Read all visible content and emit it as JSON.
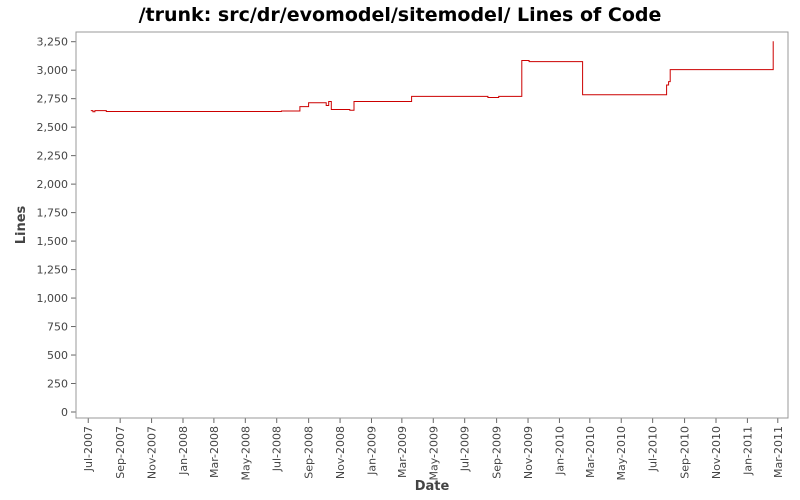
{
  "chart_data": {
    "type": "line",
    "title": "/trunk: src/dr/evomodel/sitemodel/ Lines of Code",
    "xlabel": "Date",
    "ylabel": "Lines",
    "ylim": [
      0,
      3300
    ],
    "xlim": [
      "2007-06-15",
      "2011-03-15"
    ],
    "grid": false,
    "legend": "none",
    "line_color": "#cc0000",
    "y_ticks": [
      0,
      250,
      500,
      750,
      1000,
      1250,
      1500,
      1750,
      2000,
      2250,
      2500,
      2750,
      3000,
      3250
    ],
    "y_tick_labels": [
      "0",
      "250",
      "500",
      "750",
      "1,000",
      "1,250",
      "1,500",
      "1,750",
      "2,000",
      "2,250",
      "2,500",
      "2,750",
      "3,000",
      "3,250"
    ],
    "x_ticks": [
      "2007-07-01",
      "2007-09-01",
      "2007-11-01",
      "2008-01-01",
      "2008-03-01",
      "2008-05-01",
      "2008-07-01",
      "2008-09-01",
      "2008-11-01",
      "2009-01-01",
      "2009-03-01",
      "2009-05-01",
      "2009-07-01",
      "2009-09-01",
      "2009-11-01",
      "2010-01-01",
      "2010-03-01",
      "2010-05-01",
      "2010-07-01",
      "2010-09-01",
      "2010-11-01",
      "2011-01-01",
      "2011-03-01"
    ],
    "x_tick_labels": [
      "Jul-2007",
      "Sep-2007",
      "Nov-2007",
      "Jan-2008",
      "Mar-2008",
      "May-2008",
      "Jul-2008",
      "Sep-2008",
      "Nov-2008",
      "Jan-2009",
      "Mar-2009",
      "May-2009",
      "Jul-2009",
      "Sep-2009",
      "Nov-2009",
      "Jan-2010",
      "Mar-2010",
      "May-2010",
      "Jul-2010",
      "Sep-2010",
      "Nov-2010",
      "Jan-2011",
      "Mar-2011"
    ],
    "series": [
      {
        "style": "step",
        "points": [
          [
            "2007-07-06",
            2645
          ],
          [
            "2007-07-10",
            2635
          ],
          [
            "2007-07-14",
            2645
          ],
          [
            "2007-08-05",
            2637
          ],
          [
            "2008-07-10",
            2642
          ],
          [
            "2008-08-15",
            2680
          ],
          [
            "2008-09-01",
            2715
          ],
          [
            "2008-10-05",
            2690
          ],
          [
            "2008-10-10",
            2725
          ],
          [
            "2008-10-15",
            2655
          ],
          [
            "2008-11-20",
            2648
          ],
          [
            "2008-11-28",
            2725
          ],
          [
            "2009-03-20",
            2770
          ],
          [
            "2009-08-15",
            2760
          ],
          [
            "2009-09-05",
            2770
          ],
          [
            "2009-10-20",
            3085
          ],
          [
            "2009-11-03",
            3075
          ],
          [
            "2010-02-15",
            2785
          ],
          [
            "2010-07-28",
            2870
          ],
          [
            "2010-08-01",
            2900
          ],
          [
            "2010-08-04",
            3005
          ],
          [
            "2011-02-20",
            3250
          ],
          [
            "2011-02-21",
            3250
          ]
        ]
      }
    ]
  }
}
